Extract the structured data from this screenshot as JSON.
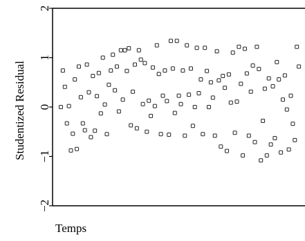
{
  "chart_data": {
    "type": "scatter",
    "xlabel": "Temps",
    "ylabel": "Studentized  Residual",
    "ylim": [
      -2,
      2
    ],
    "yticks": [
      2,
      1,
      0,
      -1,
      -2
    ],
    "ytick_labels": [
      "2",
      "1",
      "0",
      "−1",
      "−2"
    ],
    "xlim": [
      0,
      120
    ],
    "grid": false,
    "legend": "none",
    "marker": "open-square",
    "points": [
      [
        0,
        0.0
      ],
      [
        1,
        0.74
      ],
      [
        2,
        0.41
      ],
      [
        3,
        -0.33
      ],
      [
        4,
        0.02
      ],
      [
        5,
        -0.88
      ],
      [
        6,
        -0.54
      ],
      [
        7,
        0.56
      ],
      [
        8,
        -0.85
      ],
      [
        9,
        0.82
      ],
      [
        10,
        0.2
      ],
      [
        11,
        -0.33
      ],
      [
        12,
        -0.47
      ],
      [
        13,
        0.86
      ],
      [
        14,
        0.3
      ],
      [
        15,
        -0.61
      ],
      [
        16,
        0.63
      ],
      [
        17,
        -0.48
      ],
      [
        18,
        0.22
      ],
      [
        19,
        0.69
      ],
      [
        20,
        -0.13
      ],
      [
        21,
        1.0
      ],
      [
        22,
        0.05
      ],
      [
        23,
        -0.55
      ],
      [
        24,
        0.45
      ],
      [
        25,
        0.74
      ],
      [
        26,
        1.06
      ],
      [
        27,
        0.34
      ],
      [
        28,
        0.82
      ],
      [
        29,
        -0.09
      ],
      [
        30,
        1.15
      ],
      [
        31,
        0.15
      ],
      [
        32,
        1.15
      ],
      [
        33,
        0.73
      ],
      [
        34,
        1.19
      ],
      [
        35,
        -0.37
      ],
      [
        36,
        0.31
      ],
      [
        37,
        0.86
      ],
      [
        38,
        -0.43
      ],
      [
        39,
        1.15
      ],
      [
        40,
        0.96
      ],
      [
        41,
        0.06
      ],
      [
        42,
        0.89
      ],
      [
        43,
        -0.5
      ],
      [
        44,
        0.13
      ],
      [
        45,
        -0.18
      ],
      [
        46,
        0.8
      ],
      [
        47,
        0.02
      ],
      [
        48,
        1.25
      ],
      [
        49,
        0.67
      ],
      [
        50,
        -0.55
      ],
      [
        51,
        0.23
      ],
      [
        52,
        0.74
      ],
      [
        53,
        0.12
      ],
      [
        54,
        -0.56
      ],
      [
        55,
        1.34
      ],
      [
        56,
        0.78
      ],
      [
        57,
        -0.12
      ],
      [
        58,
        1.34
      ],
      [
        59,
        0.23
      ],
      [
        60,
        0.06
      ],
      [
        61,
        0.74
      ],
      [
        62,
        -0.58
      ],
      [
        63,
        1.25
      ],
      [
        64,
        0.25
      ],
      [
        65,
        0.78
      ],
      [
        66,
        -0.38
      ],
      [
        67,
        0.0
      ],
      [
        68,
        1.2
      ],
      [
        69,
        0.28
      ],
      [
        70,
        0.56
      ],
      [
        71,
        -0.55
      ],
      [
        72,
        1.2
      ],
      [
        73,
        0.73
      ],
      [
        74,
        0.0
      ],
      [
        75,
        0.5
      ],
      [
        76,
        0.19
      ],
      [
        77,
        -0.58
      ],
      [
        78,
        1.13
      ],
      [
        79,
        0.54
      ],
      [
        80,
        -0.8
      ],
      [
        81,
        0.63
      ],
      [
        82,
        0.39
      ],
      [
        83,
        -0.89
      ],
      [
        84,
        0.66
      ],
      [
        85,
        0.09
      ],
      [
        86,
        1.1
      ],
      [
        87,
        -0.52
      ],
      [
        88,
        0.11
      ],
      [
        89,
        1.22
      ],
      [
        90,
        0.47
      ],
      [
        91,
        -0.98
      ],
      [
        92,
        1.18
      ],
      [
        93,
        0.68
      ],
      [
        94,
        -0.58
      ],
      [
        95,
        0.31
      ],
      [
        96,
        0.84
      ],
      [
        97,
        -0.71
      ],
      [
        98,
        1.22
      ],
      [
        99,
        0.77
      ],
      [
        100,
        -1.08
      ],
      [
        101,
        -0.28
      ],
      [
        102,
        0.37
      ],
      [
        103,
        -0.98
      ],
      [
        104,
        0.58
      ],
      [
        105,
        -0.76
      ],
      [
        106,
        0.42
      ],
      [
        107,
        -0.63
      ],
      [
        108,
        0.91
      ],
      [
        109,
        0.56
      ],
      [
        110,
        -0.92
      ],
      [
        111,
        0.15
      ],
      [
        112,
        0.64
      ],
      [
        113,
        -0.05
      ],
      [
        114,
        -0.86
      ],
      [
        115,
        0.23
      ],
      [
        116,
        -0.34
      ],
      [
        117,
        -0.67
      ],
      [
        118,
        1.22
      ],
      [
        119,
        0.82
      ]
    ]
  }
}
